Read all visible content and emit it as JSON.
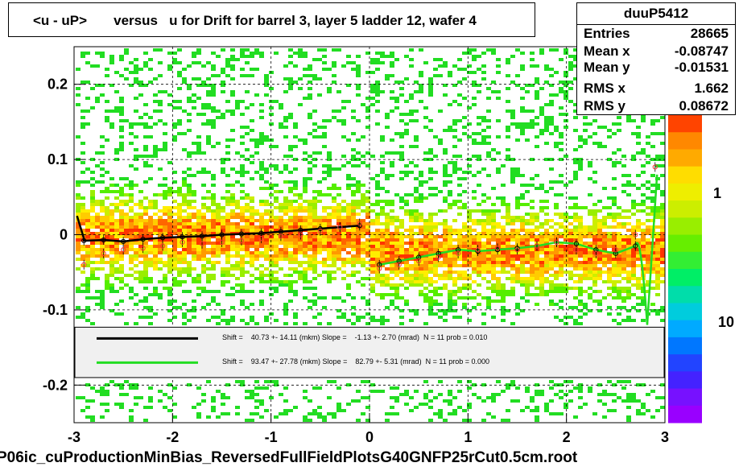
{
  "title": "<u - uP>       versus   u for Drift for barrel 3, layer 5 ladder 12, wafer 4",
  "stats": {
    "name": "duuP5412",
    "rows": [
      {
        "label": "Entries",
        "value": "28665"
      },
      {
        "label": "Mean x",
        "value": "-0.08747"
      },
      {
        "label": "Mean y",
        "value": "-0.01531"
      },
      {
        "label": "RMS x",
        "value": "1.662"
      },
      {
        "label": "RMS y",
        "value": "0.08672"
      }
    ]
  },
  "footer": "P06ic_cuProductionMinBias_ReversedFullFieldPlotsG40GNFP25rCut0.5cm.root",
  "legend": [
    {
      "text": "Shift =    40.73 +- 14.11 (mkm) Slope =    -1.13 +- 2.70 (mrad)  N = 11 prob = 0.010",
      "color": "#000000"
    },
    {
      "text": "Shift =    93.47 +- 27.78 (mkm) Slope =    82.79 +- 5.31 (mrad)  N = 11 prob = 0.000",
      "color": "#22dd22"
    }
  ],
  "palette_labels": [
    "1",
    "10"
  ],
  "chart_data": {
    "type": "heatmap",
    "title": "<u - uP>       versus   u for Drift for barrel 3, layer 5 ladder 12, wafer 4",
    "xlim": [
      -3,
      3
    ],
    "ylim": [
      -0.25,
      0.25
    ],
    "x_ticks": [
      "-3",
      "-2",
      "-1",
      "0",
      "1",
      "2",
      "3"
    ],
    "y_ticks": [
      "-0.2",
      "-0.1",
      "0",
      "0.1",
      "0.2"
    ],
    "colors": {
      "high": "#ff2000",
      "mid": "#ffdd00",
      "low": "#22dd22",
      "black_fit": "#000000",
      "green_fit": "#22dd22"
    },
    "series": [
      {
        "name": "black profile",
        "x": [
          -2.9,
          -2.7,
          -2.5,
          -2.3,
          -2.1,
          -1.9,
          -1.7,
          -1.5,
          -1.3,
          -1.1,
          -0.9,
          -0.7,
          -0.5,
          -0.3,
          -0.1
        ],
        "y": [
          -0.008,
          -0.007,
          -0.009,
          -0.006,
          -0.004,
          -0.003,
          -0.002,
          0.0,
          0.001,
          0.002,
          0.004,
          0.006,
          0.008,
          0.01,
          0.012
        ]
      },
      {
        "name": "green profile",
        "x": [
          0.1,
          0.3,
          0.5,
          0.7,
          0.9,
          1.1,
          1.3,
          1.5,
          1.7,
          1.9,
          2.1,
          2.3,
          2.5,
          2.7
        ],
        "y": [
          -0.04,
          -0.035,
          -0.03,
          -0.025,
          -0.02,
          -0.022,
          -0.02,
          -0.018,
          -0.015,
          -0.01,
          -0.012,
          -0.02,
          -0.025,
          -0.015
        ]
      },
      {
        "name": "red profile",
        "x": [
          -2.9,
          -2.7,
          -2.5,
          -2.3,
          -2.1,
          -1.9,
          -1.7,
          -1.5,
          -1.3,
          -1.1,
          -0.9,
          -0.7,
          -0.5,
          -0.3,
          -0.1,
          0.1,
          0.3,
          0.5,
          0.7,
          0.9,
          1.1,
          1.3,
          1.5,
          1.7,
          1.9,
          2.1,
          2.3,
          2.5,
          2.7,
          2.9
        ],
        "y": [
          -0.04,
          -0.025,
          -0.02,
          -0.018,
          -0.015,
          -0.01,
          -0.012,
          -0.01,
          -0.008,
          -0.005,
          -0.002,
          0.0,
          0.005,
          0.01,
          0.015,
          -0.045,
          -0.04,
          -0.035,
          -0.03,
          -0.025,
          -0.02,
          -0.018,
          -0.02,
          -0.015,
          -0.01,
          -0.02,
          -0.025,
          -0.02,
          0.0,
          0.09
        ]
      }
    ]
  }
}
